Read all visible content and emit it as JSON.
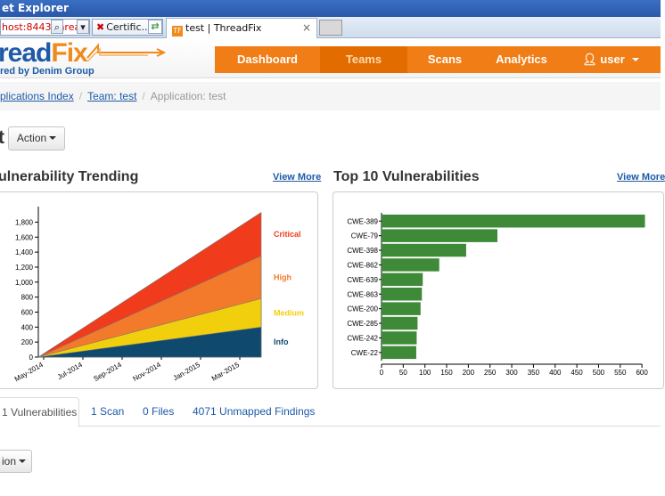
{
  "browser": {
    "window_title": "et Explorer",
    "address_text": "host:8443/threa",
    "cert_tab_label": "Certific...",
    "page_tab_label": "test | ThreadFix",
    "tab_close": "×"
  },
  "app": {
    "logo_main": "read",
    "logo_fix": "Fix",
    "tagline": "red by Denim Group",
    "nav": [
      {
        "label": "Dashboard"
      },
      {
        "label": "Teams"
      },
      {
        "label": "Scans"
      },
      {
        "label": "Analytics"
      },
      {
        "label": "user"
      }
    ]
  },
  "breadcrumb": {
    "apps_index": "plications Index",
    "team": "Team: test",
    "sep": "/",
    "application": "Application: test"
  },
  "page": {
    "title": "t",
    "action_label": "Action",
    "action2_label": "ion"
  },
  "trending": {
    "title": "ulnerability Trending",
    "view_more": "View More"
  },
  "top10": {
    "title": "Top 10 Vulnerabilities",
    "view_more": "View More"
  },
  "tabs": [
    {
      "label": "1 Vulnerabilities"
    },
    {
      "label": "1 Scan"
    },
    {
      "label": "0 Files"
    },
    {
      "label": "4071 Unmapped Findings"
    }
  ],
  "colors": {
    "critical": "#f03b1c",
    "high": "#f27a2a",
    "medium": "#f2cf0c",
    "info": "#0f4a6e",
    "bar": "#3f8a38",
    "nav": "#f07d15"
  },
  "chart_data": [
    {
      "type": "area",
      "stacked": true,
      "x": [
        "May-2014",
        "Jul-2014",
        "Sep-2014",
        "Nov-2014",
        "Jan-2015",
        "Mar-2015"
      ],
      "x_range": [
        "2014-05",
        "2015-05"
      ],
      "series": [
        {
          "name": "Info",
          "start": 0,
          "end": 400
        },
        {
          "name": "Medium",
          "start": 0,
          "end": 780
        },
        {
          "name": "High",
          "start": 0,
          "end": 1350
        },
        {
          "name": "Critical",
          "start": 0,
          "end": 1930
        }
      ],
      "yticks": [
        "0",
        "200",
        "400",
        "600",
        "800",
        "1,000",
        "1,200",
        "1,400",
        "1,600",
        "1,800"
      ],
      "ylim": [
        0,
        1960
      ],
      "legend": "right"
    },
    {
      "type": "bar",
      "orientation": "horizontal",
      "categories": [
        "CWE-389",
        "CWE-79",
        "CWE-398",
        "CWE-862",
        "CWE-639",
        "CWE-863",
        "CWE-200",
        "CWE-285",
        "CWE-242",
        "CWE-22"
      ],
      "values": [
        607,
        267,
        195,
        133,
        95,
        93,
        90,
        83,
        81,
        80
      ],
      "xticks": [
        "0",
        "50",
        "100",
        "150",
        "200",
        "250",
        "300",
        "350",
        "400",
        "450",
        "500",
        "550",
        "600"
      ],
      "xlim": [
        0,
        610
      ]
    }
  ]
}
